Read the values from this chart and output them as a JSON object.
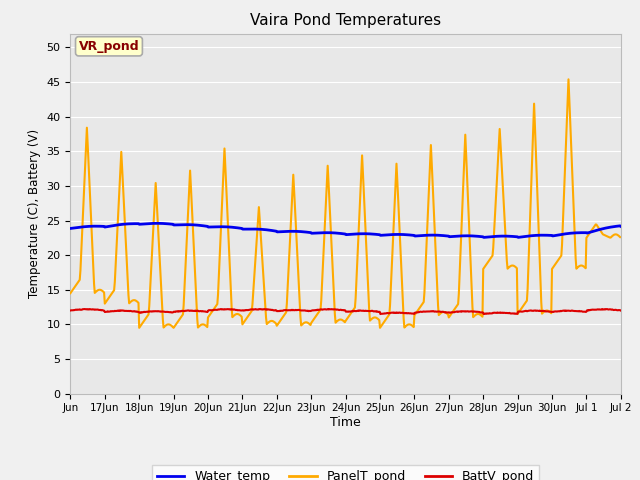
{
  "title": "Vaira Pond Temperatures",
  "xlabel": "Time",
  "ylabel": "Temperature (C), Battery (V)",
  "annotation_text": "VR_pond",
  "annotation_bg": "#ffffcc",
  "annotation_border": "#aaaaaa",
  "annotation_text_color": "#880000",
  "ylim": [
    0,
    52
  ],
  "yticks": [
    0,
    5,
    10,
    15,
    20,
    25,
    30,
    35,
    40,
    45,
    50
  ],
  "water_color": "#0000ee",
  "panel_color": "#ffaa00",
  "batt_color": "#dd0000",
  "water_lw": 2.0,
  "panel_lw": 1.5,
  "batt_lw": 1.5,
  "bg_color": "#e8e8e8",
  "fig_bg_color": "#f0f0f0",
  "grid_color": "#ffffff",
  "legend_labels": [
    "Water_temp",
    "PanelT_pond",
    "BattV_pond"
  ],
  "tick_labels": [
    "Jun",
    "17Jun",
    "18Jun",
    "19Jun",
    "20Jun",
    "21Jun",
    "22Jun",
    "23Jun",
    "24Jun",
    "25Jun",
    "26Jun",
    "27Jun",
    "28Jun",
    "29Jun",
    "30Jun",
    "Jul 1",
    "Jul 2"
  ],
  "day_peaks": [
    38.5,
    35.0,
    30.5,
    32.3,
    35.5,
    27.0,
    31.7,
    33.0,
    34.5,
    33.3,
    36.0,
    37.5,
    38.3,
    42.0,
    45.5,
    23.0
  ],
  "day_nights": [
    14.5,
    13.0,
    9.5,
    9.5,
    11.0,
    10.0,
    9.8,
    10.2,
    10.5,
    9.5,
    11.3,
    11.0,
    18.0,
    11.5,
    18.0,
    22.5
  ],
  "batt_base": [
    12.0,
    11.8,
    11.7,
    11.8,
    12.0,
    12.0,
    11.9,
    12.0,
    11.8,
    11.5,
    11.7,
    11.7,
    11.5,
    11.8,
    11.8,
    12.0
  ],
  "water_ctrl_x": [
    0.0,
    1.0,
    2.0,
    3.0,
    4.0,
    5.0,
    6.0,
    7.0,
    8.0,
    9.0,
    10.0,
    11.0,
    12.0,
    13.0,
    14.0,
    15.0,
    16.0
  ],
  "water_ctrl_y": [
    23.9,
    24.1,
    24.5,
    24.4,
    24.1,
    23.8,
    23.4,
    23.2,
    23.0,
    22.9,
    22.8,
    22.7,
    22.6,
    22.6,
    22.8,
    23.2,
    24.2
  ]
}
